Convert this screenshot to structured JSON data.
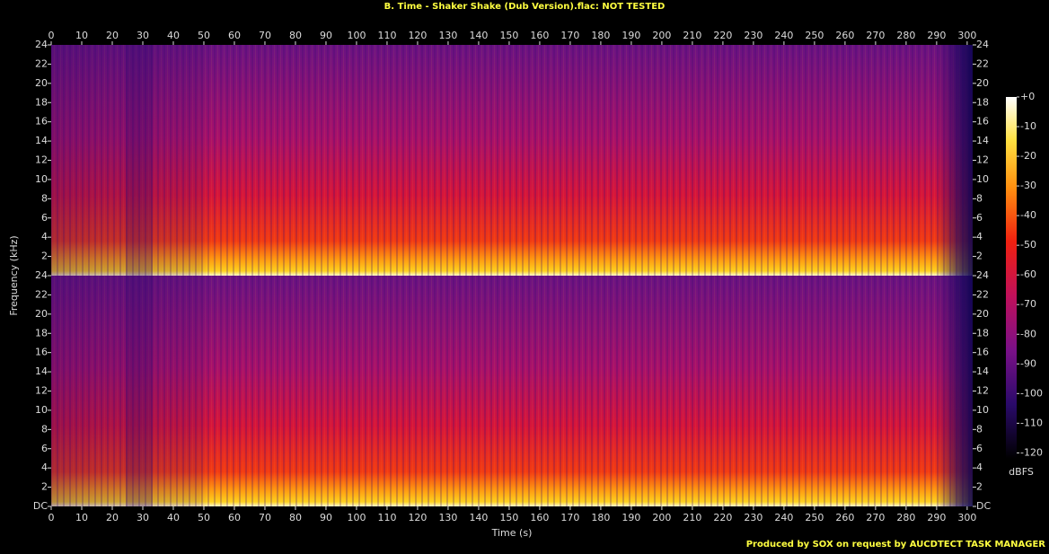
{
  "chart_data": {
    "type": "spectrogram",
    "title": "B. Time - Shaker Shake (Dub Version).flac: NOT TESTED",
    "xlabel": "Time (s)",
    "ylabel": "Frequency (kHz)",
    "colorbar_label": "dBFS",
    "footer": "Produced by SOX on request by AUCDTECT TASK MANAGER",
    "xlim": [
      0,
      301.8
    ],
    "xticks": [
      0,
      10,
      20,
      30,
      40,
      50,
      60,
      70,
      80,
      90,
      100,
      110,
      120,
      130,
      140,
      150,
      160,
      170,
      180,
      190,
      200,
      210,
      220,
      230,
      240,
      250,
      260,
      270,
      280,
      290,
      300
    ],
    "ylim": [
      0,
      24
    ],
    "yticks": [
      {
        "value": 0,
        "label": "DC"
      },
      2,
      4,
      6,
      8,
      10,
      12,
      14,
      16,
      18,
      20,
      22,
      24
    ],
    "clim": [
      -122,
      0
    ],
    "cticks": [
      {
        "value": 0,
        "label": "+0"
      },
      -10,
      -20,
      -30,
      -40,
      -50,
      -60,
      -70,
      -80,
      -90,
      -100,
      -110,
      -120
    ]
  }
}
